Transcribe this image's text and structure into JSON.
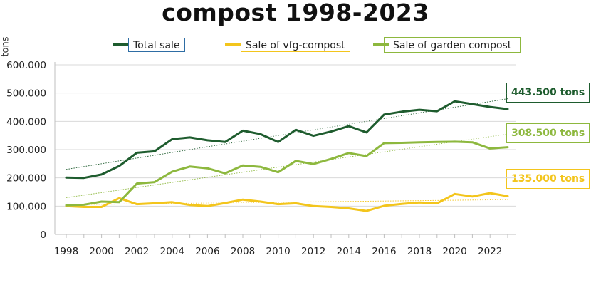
{
  "chart_data": {
    "type": "line",
    "title": "compost 1998-2023",
    "ylabel": "tons",
    "xlabel": "",
    "ylim": [
      0,
      600000
    ],
    "yticks": [
      0,
      100000,
      200000,
      300000,
      400000,
      500000,
      600000
    ],
    "ytick_labels": [
      "0",
      "100.000",
      "200.000",
      "300.000",
      "400.000",
      "500.000",
      "600.000"
    ],
    "xlim": [
      1998,
      2023
    ],
    "xticks": [
      1998,
      2000,
      2002,
      2004,
      2006,
      2008,
      2010,
      2012,
      2014,
      2016,
      2018,
      2020,
      2022
    ],
    "x": [
      1998,
      1999,
      2000,
      2001,
      2002,
      2003,
      2004,
      2005,
      2006,
      2007,
      2008,
      2009,
      2010,
      2011,
      2012,
      2013,
      2014,
      2015,
      2016,
      2017,
      2018,
      2019,
      2020,
      2021,
      2022,
      2023
    ],
    "legend_position": "top",
    "series": [
      {
        "name": "Total sale",
        "color": "#1e5c2e",
        "values": [
          201000,
          200000,
          212000,
          242000,
          289000,
          294000,
          337000,
          343000,
          333000,
          327000,
          367000,
          355000,
          327000,
          370000,
          349000,
          364000,
          383000,
          361000,
          424000,
          434000,
          441000,
          436000,
          471000,
          461000,
          451000,
          443500
        ],
        "trend": [
          230000,
          480000
        ],
        "end_label": "443.500 tons"
      },
      {
        "name": "Sale of vfg-compost",
        "color": "#f3c51c",
        "values": [
          100000,
          97000,
          97000,
          128000,
          107000,
          110000,
          114000,
          104000,
          100000,
          111000,
          123000,
          116000,
          107000,
          110000,
          100000,
          97000,
          92000,
          83000,
          101000,
          108000,
          113000,
          110000,
          143000,
          134000,
          146000,
          135000
        ],
        "trend": [
          105000,
          123000
        ],
        "end_label": "135.000 tons"
      },
      {
        "name": "Sale of garden compost",
        "color": "#8db83e",
        "values": [
          103000,
          105000,
          116000,
          114000,
          180000,
          185000,
          222000,
          240000,
          234000,
          216000,
          244000,
          239000,
          220000,
          260000,
          249000,
          267000,
          288000,
          277000,
          323000,
          324000,
          326000,
          327000,
          328000,
          326000,
          304000,
          308500
        ],
        "trend": [
          130000,
          355000
        ],
        "end_label": "308.500 tons"
      }
    ]
  }
}
